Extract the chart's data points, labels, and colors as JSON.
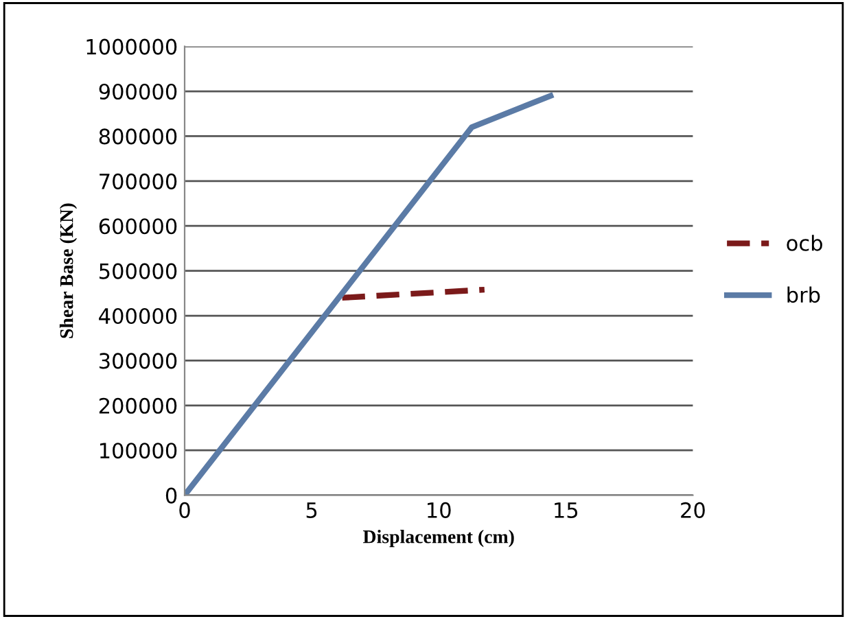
{
  "chart_data": {
    "type": "line",
    "xlabel": "Displacement (cm)",
    "ylabel": "Shear Base (KN)",
    "xlim": [
      0,
      20
    ],
    "xticks": [
      0,
      5,
      10,
      15,
      20
    ],
    "ylim": [
      0,
      1000000
    ],
    "yticks": [
      0,
      100000,
      200000,
      300000,
      400000,
      500000,
      600000,
      700000,
      800000,
      900000,
      1000000
    ],
    "grid": "y",
    "legend": "right",
    "marker": "none",
    "series": [
      {
        "name": "ocb",
        "color": "#7b1a1a",
        "line_style": "dashed",
        "x": [
          6.2,
          11.8
        ],
        "values": [
          440000,
          458000
        ]
      },
      {
        "name": "brb",
        "color": "#5b7ba6",
        "line_style": "solid",
        "x": [
          0,
          11.3,
          14.4
        ],
        "values": [
          0,
          820000,
          890000
        ]
      }
    ]
  }
}
